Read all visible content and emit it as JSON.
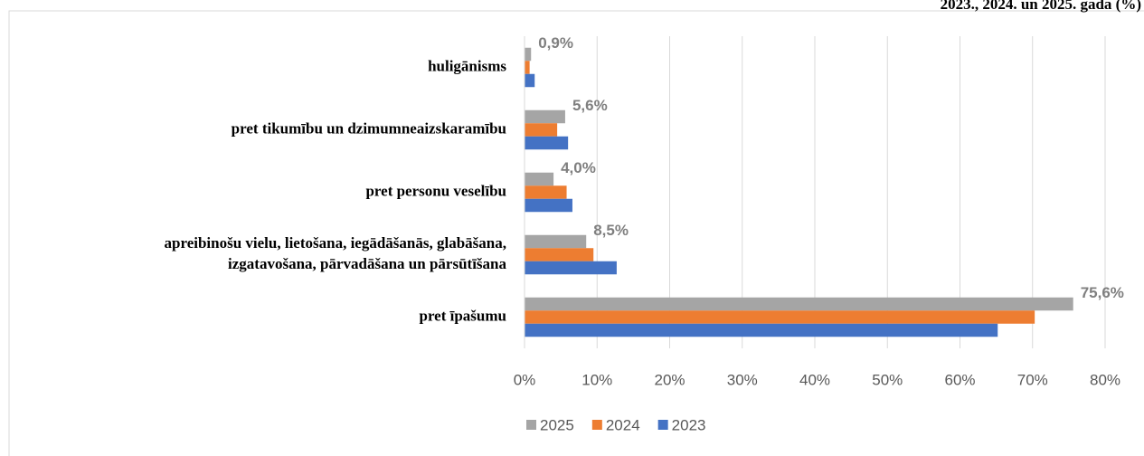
{
  "chart_data": {
    "type": "bar",
    "orientation": "horizontal",
    "title": "2023., 2024. un 2025. gada (%)",
    "categories": [
      "huligānisms",
      "pret tikumību un dzimumneaizskaramību",
      "pret personu veselību",
      "apreibinošu vielu, lietošana, iegādāšanās, glabāšana,\nizgatavošana, pārvadāšana un pārsūtīšana",
      "pret īpašumu"
    ],
    "series": [
      {
        "name": "2025",
        "color": "#a5a5a5",
        "values": [
          0.9,
          5.6,
          4.0,
          8.5,
          75.6
        ],
        "value_labels": [
          "0,9%",
          "5,6%",
          "4,0%",
          "8,5%",
          "75,6%"
        ]
      },
      {
        "name": "2024",
        "color": "#ed7d31",
        "values": [
          0.7,
          4.5,
          5.8,
          9.5,
          70.3
        ]
      },
      {
        "name": "2023",
        "color": "#4472c4",
        "values": [
          1.4,
          6.0,
          6.6,
          12.7,
          65.2
        ]
      }
    ],
    "xlim": [
      0,
      80
    ],
    "xticks": [
      {
        "value": 0,
        "label": "0%"
      },
      {
        "value": 10,
        "label": "10%"
      },
      {
        "value": 20,
        "label": "20%"
      },
      {
        "value": 30,
        "label": "30%"
      },
      {
        "value": 40,
        "label": "40%"
      },
      {
        "value": 50,
        "label": "50%"
      },
      {
        "value": 60,
        "label": "60%"
      },
      {
        "value": 70,
        "label": "70%"
      },
      {
        "value": 80,
        "label": "80%"
      }
    ],
    "grid": true,
    "legend": "bottom"
  }
}
